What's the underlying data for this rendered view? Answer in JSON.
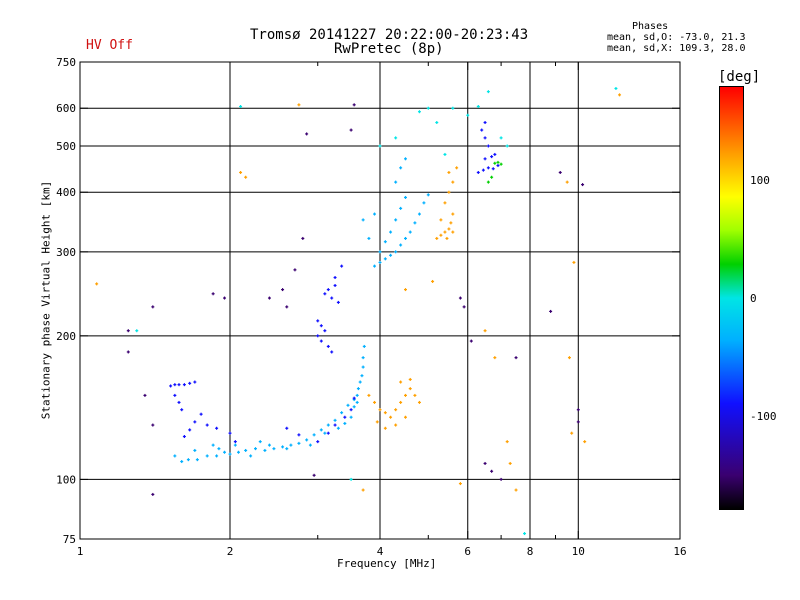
{
  "header": {
    "title_line1": "Tromsø 20141227 20:22:00-20:23:43",
    "title_line2": "RwPretec (8p)",
    "hv_status": "HV Off",
    "phases_title": "Phases",
    "phases_line1": "mean, sd,O: -73.0, 21.3",
    "phases_line2": "mean, sd,X: 109.3, 28.0"
  },
  "chart_data": {
    "type": "scatter",
    "title": "Tromsø 20141227 20:22:00-20:23:43",
    "subtitle": "RwPretec (8p)",
    "xlabel": "Frequency [MHz]",
    "ylabel": "Stationary phase Virtual Height [km]",
    "x_scale": "log",
    "y_scale": "log",
    "xlim": [
      1,
      16
    ],
    "ylim": [
      75,
      750
    ],
    "x_ticks": [
      1,
      2,
      4,
      6,
      8,
      10,
      16
    ],
    "x_tick_labels": [
      "1",
      "2",
      "4",
      "6",
      "8",
      "10",
      "16"
    ],
    "x_gridlines": [
      2,
      4,
      6,
      8,
      10
    ],
    "x_minor_ticks": [
      3,
      5,
      7,
      9
    ],
    "y_ticks": [
      75,
      100,
      200,
      300,
      400,
      500,
      600,
      750
    ],
    "y_tick_labels": [
      "75",
      "100",
      "200",
      "300",
      "400",
      "500",
      "600",
      "750"
    ],
    "y_gridlines": [
      100,
      200,
      300,
      400,
      500,
      600
    ],
    "grid": true,
    "colorbar": {
      "label": "[deg]",
      "range": [
        -180,
        180
      ],
      "ticks": [
        100,
        0,
        -100
      ],
      "tick_labels": [
        "100",
        "0",
        "-100"
      ],
      "stops": [
        "#000000",
        "#3a0070",
        "#1010ff",
        "#00b0ff",
        "#00e5e5",
        "#00d000",
        "#a0ff00",
        "#ffff00",
        "#ffa000",
        "#ff0000"
      ]
    },
    "clusters": [
      {
        "name": "O-trace low F1",
        "phase": -80,
        "points": [
          [
            1.6,
            109
          ],
          [
            1.65,
            110
          ],
          [
            1.72,
            110
          ],
          [
            1.8,
            112
          ],
          [
            1.88,
            112
          ],
          [
            1.95,
            114
          ],
          [
            2.0,
            113
          ],
          [
            2.08,
            114
          ],
          [
            2.15,
            115
          ],
          [
            2.25,
            116
          ],
          [
            2.35,
            115
          ],
          [
            2.45,
            116
          ],
          [
            2.55,
            117
          ],
          [
            2.65,
            118
          ],
          [
            2.75,
            119
          ],
          [
            2.85,
            121
          ],
          [
            2.95,
            124
          ],
          [
            3.05,
            127
          ],
          [
            3.15,
            130
          ],
          [
            3.25,
            133
          ],
          [
            3.35,
            138
          ],
          [
            3.45,
            143
          ],
          [
            3.55,
            147
          ],
          [
            3.6,
            150
          ],
          [
            3.65,
            160
          ],
          [
            3.7,
            172
          ]
        ]
      },
      {
        "name": "O-trace low F1 spread",
        "phase": -55,
        "points": [
          [
            1.55,
            112
          ],
          [
            1.7,
            115
          ],
          [
            1.85,
            118
          ],
          [
            1.9,
            116
          ],
          [
            2.05,
            118
          ],
          [
            2.2,
            112
          ],
          [
            2.3,
            120
          ],
          [
            2.4,
            118
          ],
          [
            2.6,
            116
          ],
          [
            2.9,
            118
          ],
          [
            3.1,
            125
          ],
          [
            3.3,
            128
          ],
          [
            3.4,
            131
          ],
          [
            3.5,
            135
          ],
          [
            3.55,
            142
          ],
          [
            3.6,
            145
          ],
          [
            3.62,
            155
          ],
          [
            3.68,
            165
          ],
          [
            3.7,
            180
          ],
          [
            3.72,
            190
          ]
        ]
      },
      {
        "name": "O-trace blue spine",
        "phase": -110,
        "points": [
          [
            1.62,
            123
          ],
          [
            1.66,
            127
          ],
          [
            1.7,
            132
          ],
          [
            1.75,
            137
          ],
          [
            1.8,
            130
          ],
          [
            1.88,
            128
          ],
          [
            2.0,
            125
          ],
          [
            2.05,
            120
          ],
          [
            2.6,
            128
          ],
          [
            2.75,
            124
          ],
          [
            3.0,
            120
          ],
          [
            3.15,
            125
          ],
          [
            3.25,
            130
          ],
          [
            3.4,
            135
          ],
          [
            3.5,
            140
          ],
          [
            3.55,
            148
          ]
        ]
      },
      {
        "name": "O-trace cusp",
        "phase": -115,
        "points": [
          [
            1.52,
            157
          ],
          [
            1.55,
            158
          ],
          [
            1.58,
            158
          ],
          [
            1.62,
            158
          ],
          [
            1.66,
            159
          ],
          [
            1.7,
            160
          ],
          [
            1.55,
            150
          ],
          [
            1.58,
            145
          ],
          [
            1.6,
            140
          ]
        ]
      },
      {
        "name": "F2 O-trace",
        "phase": -95,
        "points": [
          [
            3.0,
            200
          ],
          [
            3.05,
            195
          ],
          [
            3.1,
            205
          ],
          [
            3.15,
            190
          ],
          [
            3.05,
            210
          ],
          [
            3.0,
            215
          ],
          [
            3.2,
            185
          ],
          [
            3.1,
            245
          ],
          [
            3.15,
            250
          ],
          [
            3.25,
            255
          ],
          [
            3.2,
            240
          ],
          [
            3.3,
            235
          ],
          [
            3.25,
            265
          ],
          [
            3.35,
            280
          ]
        ]
      },
      {
        "name": "F2 upper",
        "phase": -60,
        "points": [
          [
            3.9,
            280
          ],
          [
            4.0,
            285
          ],
          [
            4.1,
            290
          ],
          [
            4.2,
            295
          ],
          [
            4.3,
            300
          ],
          [
            4.4,
            310
          ],
          [
            4.5,
            320
          ],
          [
            4.6,
            330
          ],
          [
            4.7,
            345
          ],
          [
            4.8,
            360
          ],
          [
            4.9,
            380
          ],
          [
            5.0,
            395
          ],
          [
            4.2,
            330
          ],
          [
            4.3,
            350
          ],
          [
            4.4,
            370
          ],
          [
            4.5,
            390
          ],
          [
            4.1,
            315
          ],
          [
            4.0,
            300
          ],
          [
            3.8,
            320
          ],
          [
            3.7,
            350
          ],
          [
            3.9,
            360
          ],
          [
            4.3,
            420
          ],
          [
            4.4,
            450
          ],
          [
            4.5,
            470
          ]
        ]
      },
      {
        "name": "X-trace F1",
        "phase": 120,
        "points": [
          [
            3.8,
            150
          ],
          [
            3.9,
            145
          ],
          [
            4.0,
            140
          ],
          [
            4.1,
            138
          ],
          [
            4.2,
            135
          ],
          [
            4.3,
            140
          ],
          [
            4.4,
            145
          ],
          [
            4.5,
            150
          ],
          [
            4.6,
            155
          ],
          [
            4.7,
            150
          ],
          [
            4.8,
            145
          ],
          [
            4.5,
            135
          ],
          [
            4.3,
            130
          ],
          [
            4.1,
            128
          ],
          [
            3.95,
            132
          ],
          [
            4.4,
            160
          ],
          [
            4.6,
            162
          ]
        ]
      },
      {
        "name": "X-trace F2",
        "phase": 140,
        "points": [
          [
            5.2,
            320
          ],
          [
            5.3,
            325
          ],
          [
            5.4,
            330
          ],
          [
            5.5,
            335
          ],
          [
            5.6,
            330
          ],
          [
            5.45,
            320
          ],
          [
            5.55,
            345
          ],
          [
            5.6,
            360
          ],
          [
            5.4,
            380
          ],
          [
            5.5,
            400
          ],
          [
            5.6,
            420
          ],
          [
            5.5,
            440
          ],
          [
            5.7,
            450
          ],
          [
            5.3,
            350
          ]
        ]
      },
      {
        "name": "X cusp upper",
        "phase": -120,
        "points": [
          [
            6.3,
            440
          ],
          [
            6.45,
            445
          ],
          [
            6.6,
            450
          ],
          [
            6.75,
            448
          ],
          [
            6.9,
            455
          ],
          [
            6.5,
            470
          ],
          [
            6.7,
            475
          ],
          [
            6.8,
            480
          ],
          [
            6.6,
            500
          ],
          [
            6.5,
            520
          ],
          [
            6.4,
            540
          ],
          [
            6.5,
            560
          ]
        ]
      },
      {
        "name": "X cusp green",
        "phase": 35,
        "points": [
          [
            6.8,
            460
          ],
          [
            6.9,
            462
          ],
          [
            7.0,
            458
          ],
          [
            6.7,
            430
          ],
          [
            6.6,
            420
          ]
        ]
      },
      {
        "name": "scattered low",
        "phase": -130,
        "points": [
          [
            1.25,
            205
          ],
          [
            1.25,
            185
          ],
          [
            1.4,
            230
          ],
          [
            1.35,
            150
          ],
          [
            1.4,
            130
          ],
          [
            1.4,
            93
          ],
          [
            1.85,
            245
          ],
          [
            1.95,
            240
          ],
          [
            2.4,
            240
          ],
          [
            2.55,
            250
          ],
          [
            2.6,
            230
          ],
          [
            2.7,
            275
          ],
          [
            2.8,
            320
          ],
          [
            2.85,
            530
          ],
          [
            2.95,
            102
          ],
          [
            3.55,
            610
          ],
          [
            3.5,
            540
          ],
          [
            5.8,
            240
          ],
          [
            5.9,
            230
          ],
          [
            6.1,
            195
          ],
          [
            6.5,
            108
          ],
          [
            6.7,
            104
          ],
          [
            7.0,
            100
          ],
          [
            7.5,
            180
          ],
          [
            8.8,
            225
          ],
          [
            9.2,
            440
          ],
          [
            10.2,
            415
          ],
          [
            10.0,
            140
          ],
          [
            10.0,
            132
          ]
        ]
      },
      {
        "name": "scattered warm",
        "phase": 140,
        "points": [
          [
            1.08,
            257
          ],
          [
            2.1,
            440
          ],
          [
            2.15,
            430
          ],
          [
            2.75,
            610
          ],
          [
            3.7,
            95
          ],
          [
            4.5,
            250
          ],
          [
            5.1,
            260
          ],
          [
            5.8,
            98
          ],
          [
            6.5,
            205
          ],
          [
            6.8,
            180
          ],
          [
            7.2,
            120
          ],
          [
            7.3,
            108
          ],
          [
            7.5,
            95
          ],
          [
            9.5,
            420
          ],
          [
            9.8,
            285
          ],
          [
            9.6,
            180
          ],
          [
            9.7,
            125
          ],
          [
            10.3,
            120
          ],
          [
            12.1,
            640
          ]
        ]
      },
      {
        "name": "scattered cyan",
        "phase": -40,
        "points": [
          [
            1.3,
            205
          ],
          [
            2.1,
            605
          ],
          [
            3.5,
            100
          ],
          [
            4.0,
            500
          ],
          [
            4.3,
            520
          ],
          [
            4.8,
            590
          ],
          [
            5.0,
            600
          ],
          [
            5.2,
            560
          ],
          [
            5.4,
            480
          ],
          [
            5.6,
            600
          ],
          [
            6.0,
            580
          ],
          [
            6.3,
            605
          ],
          [
            6.6,
            650
          ],
          [
            7.0,
            520
          ],
          [
            7.2,
            500
          ],
          [
            7.8,
            77
          ],
          [
            11.9,
            660
          ]
        ]
      }
    ]
  }
}
